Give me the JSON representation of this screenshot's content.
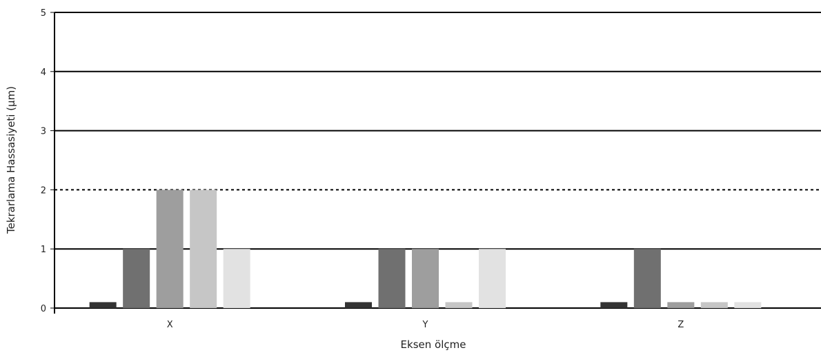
{
  "chart_data": {
    "type": "bar",
    "categories": [
      "X",
      "Y",
      "Z"
    ],
    "series": [
      {
        "values": [
          0.1,
          0.1,
          0.1
        ],
        "color": "#333333"
      },
      {
        "values": [
          1,
          1,
          1
        ],
        "color": "#707070"
      },
      {
        "values": [
          2,
          1,
          0.1
        ],
        "color": "#9e9e9e"
      },
      {
        "values": [
          2,
          0.1,
          0.1
        ],
        "color": "#c6c6c6"
      },
      {
        "values": [
          1,
          1,
          0.1
        ],
        "color": "#e2e2e2"
      }
    ],
    "xlabel": "Eksen ölçme",
    "ylabel": "Tekrarlama Hassasiyeti (µm)",
    "ylim": [
      0,
      5
    ],
    "yticks": [
      0,
      1,
      2,
      3,
      4,
      5
    ],
    "grid": true,
    "reference_line": {
      "value": 2,
      "style": "dashed"
    },
    "legend": "none"
  }
}
